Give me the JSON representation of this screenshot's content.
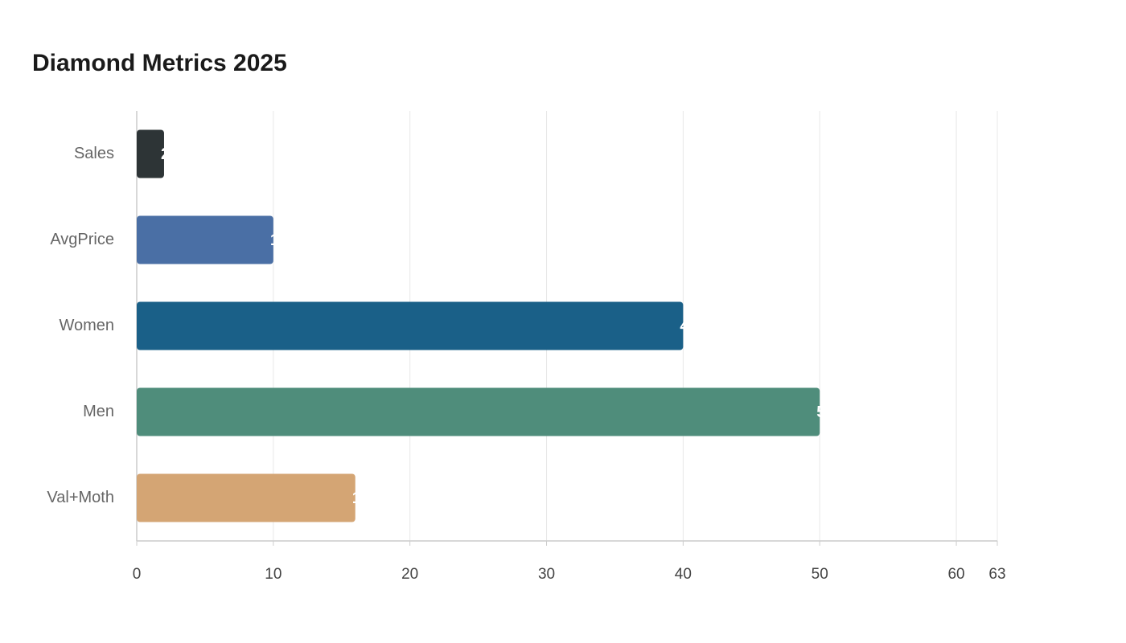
{
  "chart_data": {
    "type": "bar",
    "orientation": "horizontal",
    "title": "Diamond Metrics 2025",
    "categories": [
      "Sales",
      "AvgPrice",
      "Women",
      "Men",
      "Val+Moth"
    ],
    "values": [
      2,
      10,
      40,
      50,
      16
    ],
    "colors": [
      "#2d3436",
      "#4a6fa5",
      "#1a6088",
      "#4f8d7b",
      "#d4a574"
    ],
    "xlim": [
      0,
      63
    ],
    "xticks": [
      0,
      10,
      20,
      30,
      40,
      50,
      60,
      63
    ],
    "grid": true
  }
}
